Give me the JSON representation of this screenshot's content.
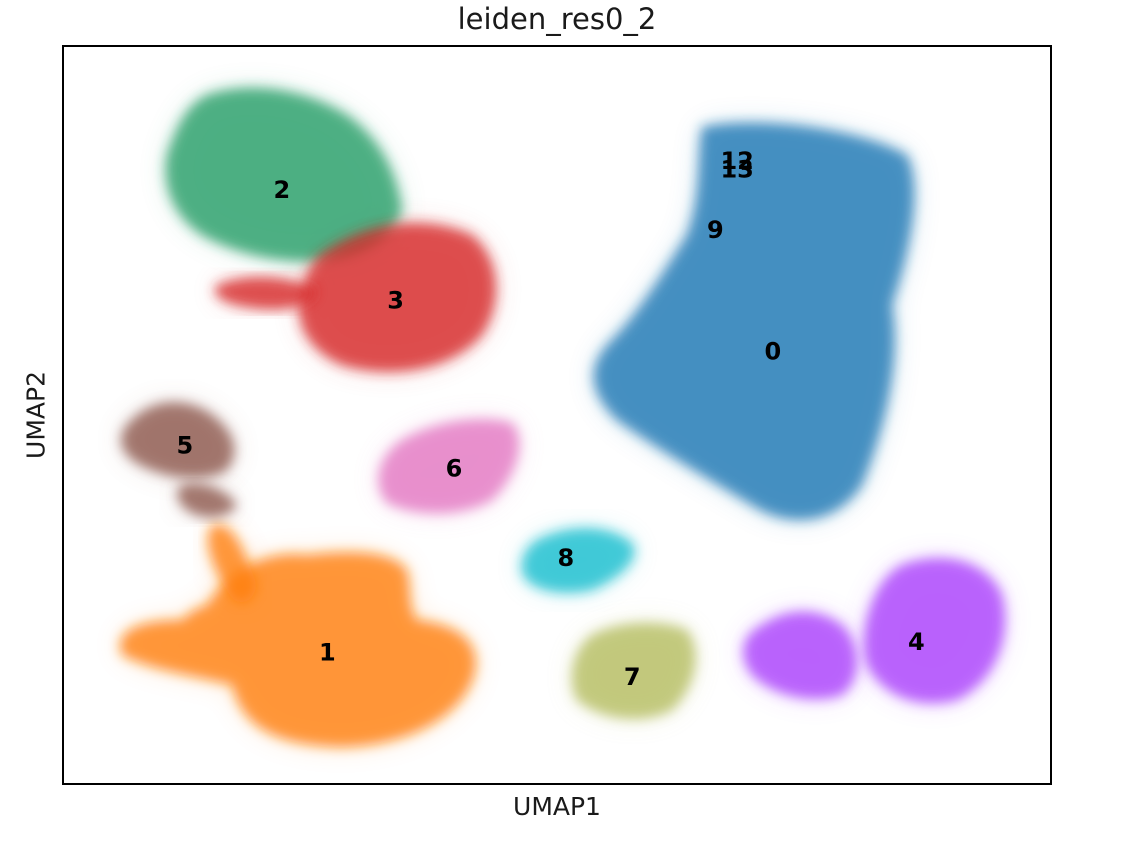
{
  "chart_data": {
    "type": "scatter",
    "title": "leiden_res0_2",
    "xlabel": "UMAP1",
    "ylabel": "UMAP2",
    "grid": false,
    "legend": "on data",
    "xlim": [
      0,
      10
    ],
    "ylim": [
      0,
      10
    ],
    "clusters": [
      {
        "label": "0",
        "color": "#1f77b4",
        "x": 7.18,
        "y": 5.86
      },
      {
        "label": "1",
        "color": "#ff7f0e",
        "x": 2.68,
        "y": 1.79
      },
      {
        "label": "2",
        "color": "#279e68",
        "x": 2.22,
        "y": 8.04
      },
      {
        "label": "3",
        "color": "#d62728",
        "x": 3.37,
        "y": 6.55
      },
      {
        "label": "4",
        "color": "#aa40fc",
        "x": 8.63,
        "y": 1.93
      },
      {
        "label": "5",
        "color": "#8c564b",
        "x": 1.24,
        "y": 4.59
      },
      {
        "label": "6",
        "color": "#e377c2",
        "x": 3.96,
        "y": 4.28
      },
      {
        "label": "7",
        "color": "#b5bd61",
        "x": 5.76,
        "y": 1.46
      },
      {
        "label": "8",
        "color": "#17becf",
        "x": 5.09,
        "y": 3.07
      },
      {
        "label": "9",
        "color": "#1f77b4",
        "x": 6.6,
        "y": 7.5
      },
      {
        "label": "12",
        "color": "#1f77b4",
        "x": 6.82,
        "y": 8.43
      },
      {
        "label": "13",
        "color": "#1f77b4",
        "x": 6.82,
        "y": 8.32
      }
    ]
  }
}
